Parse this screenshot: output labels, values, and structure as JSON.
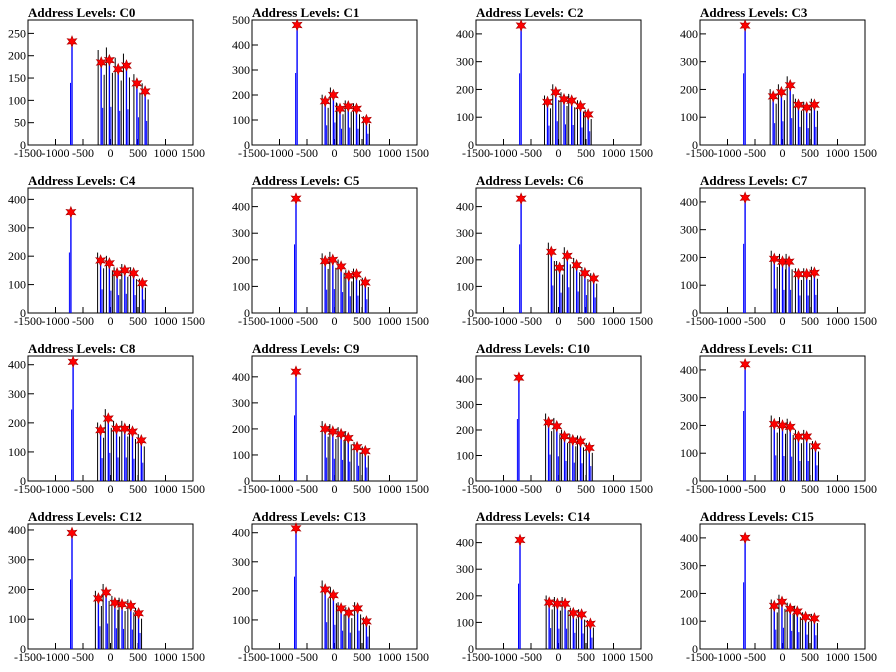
{
  "x_ticks": [
    "-1500",
    "-1000",
    "-500",
    "0",
    "500",
    "1000",
    "1500"
  ],
  "colors": {
    "blue": "#0000ff",
    "black": "#000000",
    "marker": "#ff0000"
  },
  "chart_data": [
    {
      "type": "bar",
      "title": "Address Levels: C0",
      "xlim": [
        -1500,
        1500
      ],
      "ylim": [
        0,
        280
      ],
      "y_ticks": [
        0,
        50,
        100,
        150,
        200,
        250
      ],
      "peaks": [
        {
          "x": -700,
          "y": 232
        },
        {
          "x": -170,
          "y": 185
        },
        {
          "x": -20,
          "y": 190
        },
        {
          "x": 140,
          "y": 170
        },
        {
          "x": 290,
          "y": 178
        },
        {
          "x": 480,
          "y": 138
        },
        {
          "x": 630,
          "y": 120
        }
      ]
    },
    {
      "type": "bar",
      "title": "Address Levels: C1",
      "xlim": [
        -1500,
        1500
      ],
      "ylim": [
        0,
        500
      ],
      "y_ticks": [
        0,
        100,
        200,
        300,
        400,
        500
      ],
      "peaks": [
        {
          "x": -680,
          "y": 480
        },
        {
          "x": -170,
          "y": 175
        },
        {
          "x": -20,
          "y": 200
        },
        {
          "x": 100,
          "y": 145
        },
        {
          "x": 250,
          "y": 155
        },
        {
          "x": 400,
          "y": 145
        },
        {
          "x": 580,
          "y": 100
        }
      ]
    },
    {
      "type": "bar",
      "title": "Address Levels: C2",
      "xlim": [
        -1500,
        1500
      ],
      "ylim": [
        0,
        450
      ],
      "y_ticks": [
        0,
        100,
        200,
        300,
        400
      ],
      "peaks": [
        {
          "x": -680,
          "y": 430
        },
        {
          "x": -200,
          "y": 155
        },
        {
          "x": -50,
          "y": 190
        },
        {
          "x": 100,
          "y": 165
        },
        {
          "x": 240,
          "y": 160
        },
        {
          "x": 400,
          "y": 140
        },
        {
          "x": 540,
          "y": 110
        }
      ]
    },
    {
      "type": "bar",
      "title": "Address Levels: C3",
      "xlim": [
        -1500,
        1500
      ],
      "ylim": [
        0,
        450
      ],
      "y_ticks": [
        0,
        100,
        200,
        300,
        400
      ],
      "peaks": [
        {
          "x": -680,
          "y": 430
        },
        {
          "x": -170,
          "y": 175
        },
        {
          "x": -20,
          "y": 190
        },
        {
          "x": 140,
          "y": 215
        },
        {
          "x": 290,
          "y": 145
        },
        {
          "x": 440,
          "y": 135
        },
        {
          "x": 580,
          "y": 145
        }
      ]
    },
    {
      "type": "bar",
      "title": "Address Levels: C4",
      "xlim": [
        -1500,
        1500
      ],
      "ylim": [
        0,
        440
      ],
      "y_ticks": [
        0,
        100,
        200,
        300,
        400
      ],
      "peaks": [
        {
          "x": -720,
          "y": 355
        },
        {
          "x": -180,
          "y": 185
        },
        {
          "x": -20,
          "y": 175
        },
        {
          "x": 120,
          "y": 140
        },
        {
          "x": 260,
          "y": 150
        },
        {
          "x": 420,
          "y": 140
        },
        {
          "x": 580,
          "y": 105
        }
      ]
    },
    {
      "type": "bar",
      "title": "Address Levels: C5",
      "xlim": [
        -1500,
        1500
      ],
      "ylim": [
        0,
        470
      ],
      "y_ticks": [
        0,
        100,
        200,
        300,
        400
      ],
      "peaks": [
        {
          "x": -700,
          "y": 430
        },
        {
          "x": -170,
          "y": 195
        },
        {
          "x": -30,
          "y": 200
        },
        {
          "x": 120,
          "y": 175
        },
        {
          "x": 260,
          "y": 140
        },
        {
          "x": 400,
          "y": 145
        },
        {
          "x": 560,
          "y": 115
        }
      ]
    },
    {
      "type": "bar",
      "title": "Address Levels: C6",
      "xlim": [
        -1500,
        1500
      ],
      "ylim": [
        0,
        470
      ],
      "y_ticks": [
        0,
        100,
        200,
        300,
        400
      ],
      "peaks": [
        {
          "x": -680,
          "y": 430
        },
        {
          "x": -130,
          "y": 230
        },
        {
          "x": 20,
          "y": 170
        },
        {
          "x": 160,
          "y": 215
        },
        {
          "x": 330,
          "y": 180
        },
        {
          "x": 480,
          "y": 150
        },
        {
          "x": 640,
          "y": 130
        }
      ]
    },
    {
      "type": "bar",
      "title": "Address Levels: C7",
      "xlim": [
        -1500,
        1500
      ],
      "ylim": [
        0,
        450
      ],
      "y_ticks": [
        0,
        100,
        200,
        300,
        400
      ],
      "peaks": [
        {
          "x": -680,
          "y": 415
        },
        {
          "x": -150,
          "y": 195
        },
        {
          "x": 0,
          "y": 185
        },
        {
          "x": 120,
          "y": 185
        },
        {
          "x": 290,
          "y": 140
        },
        {
          "x": 440,
          "y": 140
        },
        {
          "x": 580,
          "y": 145
        }
      ]
    },
    {
      "type": "bar",
      "title": "Address Levels: C8",
      "xlim": [
        -1500,
        1500
      ],
      "ylim": [
        0,
        430
      ],
      "y_ticks": [
        0,
        100,
        200,
        300,
        400
      ],
      "peaks": [
        {
          "x": -680,
          "y": 410
        },
        {
          "x": -180,
          "y": 175
        },
        {
          "x": -40,
          "y": 215
        },
        {
          "x": 110,
          "y": 180
        },
        {
          "x": 260,
          "y": 180
        },
        {
          "x": 400,
          "y": 170
        },
        {
          "x": 560,
          "y": 140
        }
      ]
    },
    {
      "type": "bar",
      "title": "Address Levels: C9",
      "xlim": [
        -1500,
        1500
      ],
      "ylim": [
        0,
        480
      ],
      "y_ticks": [
        0,
        100,
        200,
        300,
        400
      ],
      "peaks": [
        {
          "x": -700,
          "y": 420
        },
        {
          "x": -170,
          "y": 200
        },
        {
          "x": -30,
          "y": 190
        },
        {
          "x": 120,
          "y": 180
        },
        {
          "x": 250,
          "y": 165
        },
        {
          "x": 410,
          "y": 130
        },
        {
          "x": 560,
          "y": 115
        }
      ]
    },
    {
      "type": "bar",
      "title": "Address Levels: C10",
      "xlim": [
        -1500,
        1500
      ],
      "ylim": [
        0,
        490
      ],
      "y_ticks": [
        0,
        100,
        200,
        300,
        400
      ],
      "peaks": [
        {
          "x": -720,
          "y": 405
        },
        {
          "x": -180,
          "y": 230
        },
        {
          "x": -30,
          "y": 215
        },
        {
          "x": 110,
          "y": 175
        },
        {
          "x": 260,
          "y": 160
        },
        {
          "x": 400,
          "y": 155
        },
        {
          "x": 560,
          "y": 130
        }
      ]
    },
    {
      "type": "bar",
      "title": "Address Levels: C11",
      "xlim": [
        -1500,
        1500
      ],
      "ylim": [
        0,
        450
      ],
      "y_ticks": [
        0,
        100,
        200,
        300,
        400
      ],
      "peaks": [
        {
          "x": -680,
          "y": 420
        },
        {
          "x": -150,
          "y": 205
        },
        {
          "x": 0,
          "y": 200
        },
        {
          "x": 140,
          "y": 195
        },
        {
          "x": 290,
          "y": 160
        },
        {
          "x": 440,
          "y": 160
        },
        {
          "x": 600,
          "y": 125
        }
      ]
    },
    {
      "type": "bar",
      "title": "Address Levels: C12",
      "xlim": [
        -1500,
        1500
      ],
      "ylim": [
        0,
        420
      ],
      "y_ticks": [
        0,
        100,
        200,
        300,
        400
      ],
      "peaks": [
        {
          "x": -700,
          "y": 390
        },
        {
          "x": -220,
          "y": 170
        },
        {
          "x": -80,
          "y": 190
        },
        {
          "x": 80,
          "y": 155
        },
        {
          "x": 210,
          "y": 150
        },
        {
          "x": 370,
          "y": 145
        },
        {
          "x": 510,
          "y": 120
        }
      ]
    },
    {
      "type": "bar",
      "title": "Address Levels: C13",
      "xlim": [
        -1500,
        1500
      ],
      "ylim": [
        0,
        430
      ],
      "y_ticks": [
        0,
        100,
        200,
        300,
        400
      ],
      "peaks": [
        {
          "x": -700,
          "y": 415
        },
        {
          "x": -170,
          "y": 205
        },
        {
          "x": -20,
          "y": 185
        },
        {
          "x": 120,
          "y": 140
        },
        {
          "x": 260,
          "y": 125
        },
        {
          "x": 420,
          "y": 140
        },
        {
          "x": 580,
          "y": 95
        }
      ]
    },
    {
      "type": "bar",
      "title": "Address Levels: C14",
      "xlim": [
        -1500,
        1500
      ],
      "ylim": [
        0,
        470
      ],
      "y_ticks": [
        0,
        100,
        200,
        300,
        400
      ],
      "peaks": [
        {
          "x": -700,
          "y": 410
        },
        {
          "x": -170,
          "y": 175
        },
        {
          "x": -20,
          "y": 170
        },
        {
          "x": 120,
          "y": 170
        },
        {
          "x": 270,
          "y": 135
        },
        {
          "x": 420,
          "y": 130
        },
        {
          "x": 580,
          "y": 95
        }
      ]
    },
    {
      "type": "bar",
      "title": "Address Levels: C15",
      "xlim": [
        -1500,
        1500
      ],
      "ylim": [
        0,
        450
      ],
      "y_ticks": [
        0,
        100,
        200,
        300,
        400
      ],
      "peaks": [
        {
          "x": -680,
          "y": 400
        },
        {
          "x": -150,
          "y": 155
        },
        {
          "x": -10,
          "y": 170
        },
        {
          "x": 140,
          "y": 145
        },
        {
          "x": 270,
          "y": 135
        },
        {
          "x": 420,
          "y": 115
        },
        {
          "x": 580,
          "y": 110
        }
      ]
    }
  ]
}
